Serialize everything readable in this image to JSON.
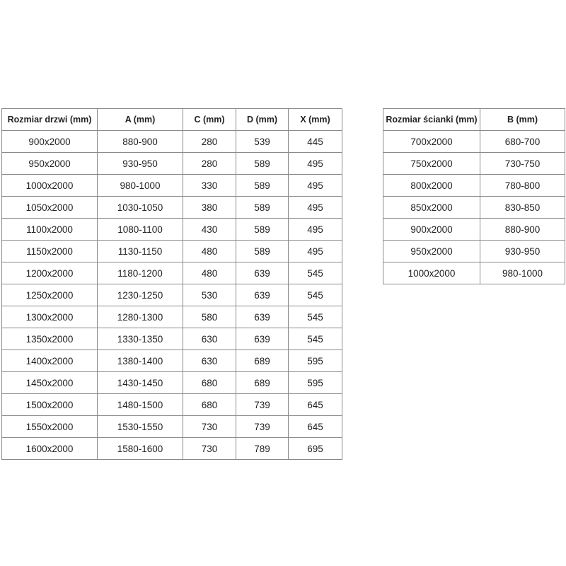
{
  "door_table": {
    "headers": [
      "Rozmiar drzwi (mm)",
      "A (mm)",
      "C (mm)",
      "D (mm)",
      "X (mm)"
    ],
    "rows": [
      [
        "900x2000",
        "880-900",
        "280",
        "539",
        "445"
      ],
      [
        "950x2000",
        "930-950",
        "280",
        "589",
        "495"
      ],
      [
        "1000x2000",
        "980-1000",
        "330",
        "589",
        "495"
      ],
      [
        "1050x2000",
        "1030-1050",
        "380",
        "589",
        "495"
      ],
      [
        "1100x2000",
        "1080-1100",
        "430",
        "589",
        "495"
      ],
      [
        "1150x2000",
        "1130-1150",
        "480",
        "589",
        "495"
      ],
      [
        "1200x2000",
        "1180-1200",
        "480",
        "639",
        "545"
      ],
      [
        "1250x2000",
        "1230-1250",
        "530",
        "639",
        "545"
      ],
      [
        "1300x2000",
        "1280-1300",
        "580",
        "639",
        "545"
      ],
      [
        "1350x2000",
        "1330-1350",
        "630",
        "639",
        "545"
      ],
      [
        "1400x2000",
        "1380-1400",
        "630",
        "689",
        "595"
      ],
      [
        "1450x2000",
        "1430-1450",
        "680",
        "689",
        "595"
      ],
      [
        "1500x2000",
        "1480-1500",
        "680",
        "739",
        "645"
      ],
      [
        "1550x2000",
        "1530-1550",
        "730",
        "739",
        "645"
      ],
      [
        "1600x2000",
        "1580-1600",
        "730",
        "789",
        "695"
      ]
    ]
  },
  "wall_table": {
    "headers": [
      "Rozmiar ścianki (mm)",
      "B (mm)"
    ],
    "rows": [
      [
        "700x2000",
        "680-700"
      ],
      [
        "750x2000",
        "730-750"
      ],
      [
        "800x2000",
        "780-800"
      ],
      [
        "850x2000",
        "830-850"
      ],
      [
        "900x2000",
        "880-900"
      ],
      [
        "950x2000",
        "930-950"
      ],
      [
        "1000x2000",
        "980-1000"
      ]
    ]
  }
}
